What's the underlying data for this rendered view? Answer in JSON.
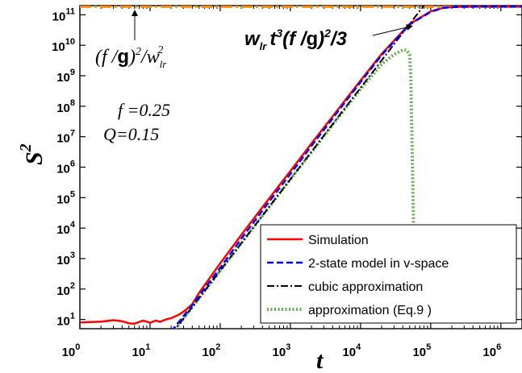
{
  "chart_data": {
    "type": "line",
    "title": "",
    "xscale": "log",
    "yscale": "log",
    "xlim": [
      1,
      2000000
    ],
    "ylim": [
      5,
      200000000000
    ],
    "xlabel": "t",
    "ylabel": "S",
    "ylabel_exp": "2",
    "x_ticks": [
      {
        "base": "10",
        "exp": "0",
        "value": 1
      },
      {
        "base": "10",
        "exp": "1",
        "value": 10
      },
      {
        "base": "10",
        "exp": "2",
        "value": 100
      },
      {
        "base": "10",
        "exp": "3",
        "value": 1000
      },
      {
        "base": "10",
        "exp": "4",
        "value": 10000
      },
      {
        "base": "10",
        "exp": "5",
        "value": 100000
      },
      {
        "base": "10",
        "exp": "6",
        "value": 1000000
      }
    ],
    "y_ticks": [
      {
        "base": "10",
        "exp": "1",
        "value": 10
      },
      {
        "base": "10",
        "exp": "2",
        "value": 100
      },
      {
        "base": "10",
        "exp": "3",
        "value": 1000
      },
      {
        "base": "10",
        "exp": "4",
        "value": 10000
      },
      {
        "base": "10",
        "exp": "5",
        "value": 100000
      },
      {
        "base": "10",
        "exp": "6",
        "value": 1000000
      },
      {
        "base": "10",
        "exp": "7",
        "value": 10000000
      },
      {
        "base": "10",
        "exp": "8",
        "value": 100000000
      },
      {
        "base": "10",
        "exp": "9",
        "value": 1000000000
      },
      {
        "base": "10",
        "exp": "10",
        "value": 10000000000
      },
      {
        "base": "10",
        "exp": "11",
        "value": 100000000000
      }
    ],
    "legend_position": "bottom-right",
    "series": [
      {
        "name": "Simulation",
        "color": "#ff0000",
        "style": "solid",
        "x": [
          1,
          2,
          3,
          4,
          5,
          6,
          7,
          8,
          9,
          10,
          12,
          14,
          16,
          18,
          20,
          25,
          30,
          40,
          50,
          100,
          200,
          500,
          1000,
          2000,
          5000,
          10000,
          20000,
          50000,
          100000,
          150000,
          200000,
          300000,
          500000,
          1000000,
          2000000
        ],
        "y": [
          8,
          8.5,
          9.5,
          8.8,
          7.5,
          7.3,
          8.3,
          9.2,
          8.5,
          7.8,
          9.2,
          8.4,
          9.6,
          10.5,
          11,
          14,
          18,
          32,
          75,
          700,
          6000,
          95000,
          750000,
          6000000,
          90000000,
          700000000,
          5200000000,
          50000000000,
          130000000000,
          170000000000,
          180000000000,
          185000000000,
          185000000000,
          185000000000,
          185000000000
        ]
      },
      {
        "name": "2-state model in v-space",
        "color": "#0000ff",
        "style": "dashed",
        "x": [
          20,
          30,
          40,
          50,
          100,
          200,
          500,
          1000,
          2000,
          5000,
          10000,
          20000,
          50000,
          100000,
          150000,
          200000,
          300000,
          500000,
          1000000,
          2000000
        ],
        "y": [
          4,
          13,
          30,
          60,
          500,
          4500,
          75000,
          600000,
          5000000,
          78000000,
          620000000,
          4800000000,
          48000000000,
          125000000000,
          168000000000,
          178000000000,
          183000000000,
          185000000000,
          185000000000,
          185000000000
        ]
      },
      {
        "name": "cubic approximation",
        "color": "#000000",
        "style": "dashdot",
        "x": [
          20,
          30,
          40,
          50,
          100,
          200,
          500,
          1000,
          2000,
          5000,
          10000,
          20000,
          50000,
          80000,
          110000
        ],
        "y": [
          3.2,
          10.8,
          25.6,
          50,
          400,
          3200,
          50000,
          400000,
          3200000,
          50000000,
          400000000,
          3200000000,
          50000000000,
          200000000000,
          500000000000
        ]
      },
      {
        "name": "approximation (Eq.9 )",
        "color": "#66aa55",
        "style": "dotted",
        "x": [
          20,
          30,
          40,
          50,
          100,
          200,
          500,
          1000,
          2000,
          5000,
          10000,
          20000,
          30000,
          40000,
          45000,
          50000,
          52000,
          54000,
          56000,
          58000,
          60000
        ],
        "y": [
          3.2,
          10.8,
          25.6,
          50,
          400,
          3200,
          50000,
          400000,
          3100000,
          48000000,
          360000000,
          2400000000,
          5000000000,
          7000000000,
          7000000000,
          5000000000,
          1000000000,
          10000000,
          100000,
          1000,
          10
        ]
      }
    ],
    "reference_line": {
      "y": 185000000000,
      "color": "#ff8800",
      "style": "dashdot"
    },
    "annotations": {
      "limit": {
        "pre": "(f /",
        "g": "g",
        "sup1": "2",
        "mid": "/w",
        "sub": "lr",
        "sup2": "2"
      },
      "cubic": {
        "w": "w",
        "sub": "lr",
        "t": "t",
        "sup1": "3",
        "paren": "(f /",
        "g": "g",
        "sup2": "2",
        "end": "/3"
      },
      "f_param": "f =0.25",
      "q_param": "Q=0.15"
    }
  }
}
